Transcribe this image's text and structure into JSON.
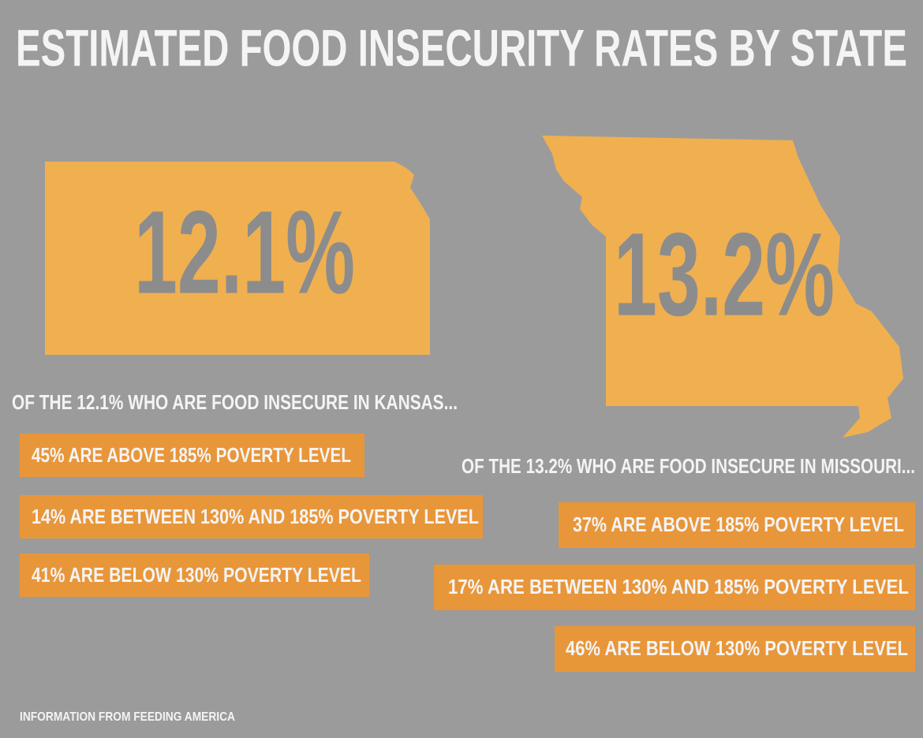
{
  "title": "ESTIMATED FOOD INSECURITY RATES BY STATE",
  "kansas": {
    "rate": "12.1%",
    "intro": "OF THE 12.1% WHO ARE FOOD INSECURE IN KANSAS...",
    "items": [
      "45% ARE ABOVE 185% POVERTY LEVEL",
      "14% ARE BETWEEN 130% AND 185% POVERTY LEVEL",
      "41% ARE BELOW 130% POVERTY LEVEL"
    ]
  },
  "missouri": {
    "rate": "13.2%",
    "intro": "OF THE 13.2% WHO ARE FOOD INSECURE IN MISSOURI...",
    "items": [
      "37% ARE ABOVE 185% POVERTY LEVEL",
      "17% ARE BETWEEN 130% AND 185% POVERTY LEVEL",
      "46% ARE BELOW 130% POVERTY LEVEL"
    ]
  },
  "source": "INFORMATION FROM FEEDING AMERICA"
}
